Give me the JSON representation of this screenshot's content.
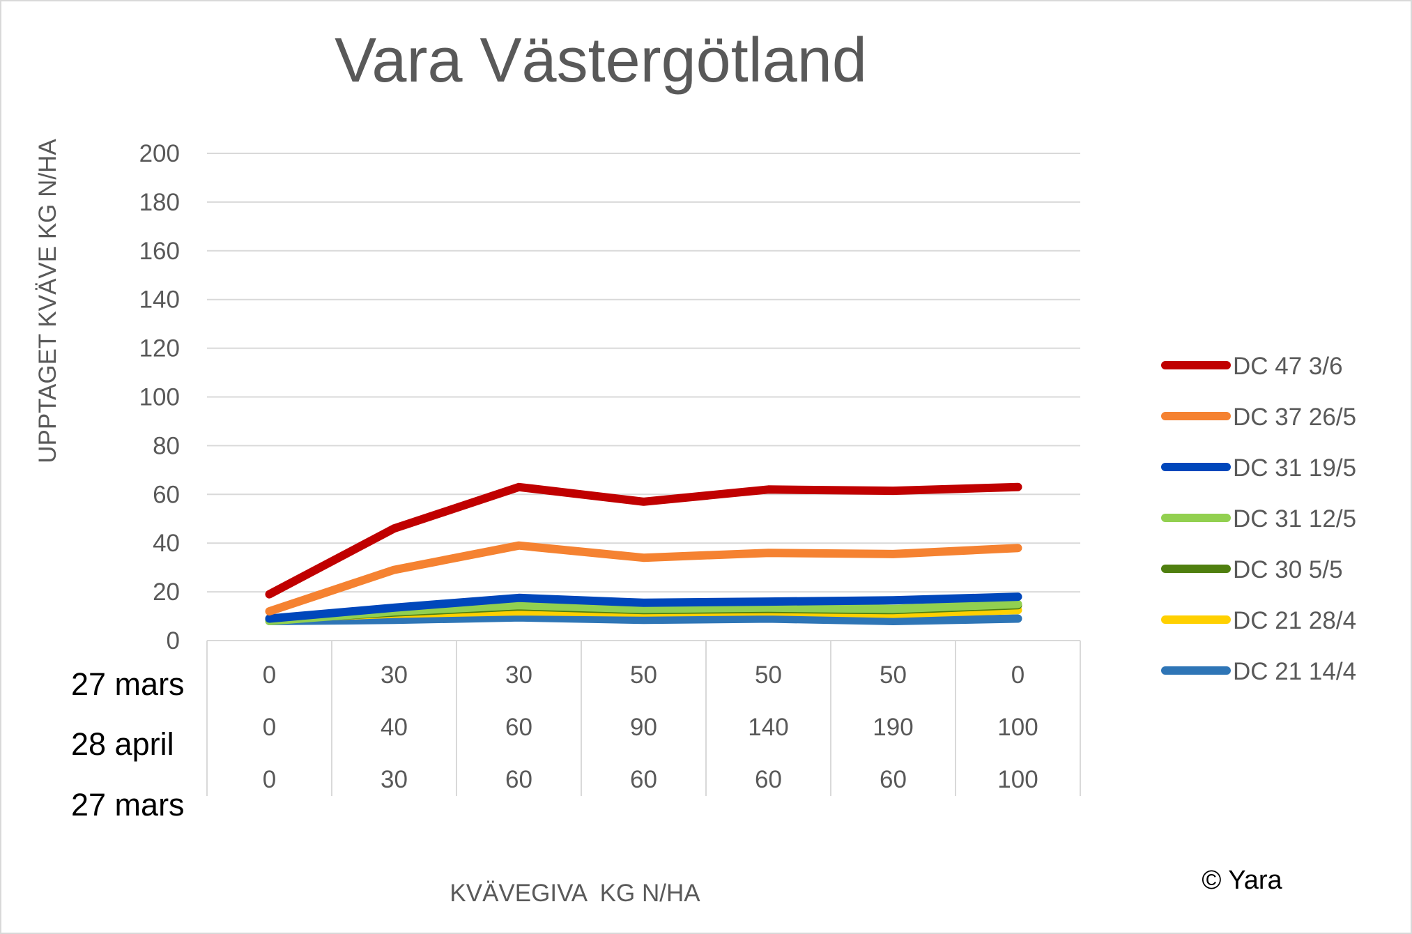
{
  "chart_data": {
    "type": "line",
    "title": "Vara Västergötland",
    "ylabel": "UPPTAGET KVÄVE KG N/HA",
    "xlabel": "KVÄVEGIVA  KG N/HA",
    "ylim": [
      0,
      200
    ],
    "yticks": [
      0,
      20,
      40,
      60,
      80,
      100,
      120,
      140,
      160,
      180,
      200
    ],
    "grid": true,
    "legend_position": "right",
    "category_rows": [
      {
        "label": "27 mars",
        "values": [
          "0",
          "30",
          "30",
          "50",
          "50",
          "50",
          "0"
        ]
      },
      {
        "label": "28 april",
        "values": [
          "0",
          "40",
          "60",
          "90",
          "140",
          "190",
          "100"
        ]
      },
      {
        "label": "27 mars",
        "values": [
          "0",
          "30",
          "60",
          "60",
          "60",
          "60",
          "100"
        ]
      }
    ],
    "series": [
      {
        "name": "DC 47 3/6",
        "color": "#c00000",
        "values": [
          19,
          46,
          63,
          57,
          62,
          61.5,
          63
        ]
      },
      {
        "name": "DC 37 26/5",
        "color": "#f58231",
        "values": [
          12,
          29,
          39,
          34,
          36,
          35.5,
          38
        ]
      },
      {
        "name": "DC 31 19/5",
        "color": "#0047bb",
        "values": [
          9,
          13.5,
          17.5,
          15.5,
          16,
          16.5,
          18
        ]
      },
      {
        "name": "DC 31 12/5",
        "color": "#92d050",
        "values": [
          8,
          12,
          14.5,
          13,
          13.5,
          13,
          15
        ]
      },
      {
        "name": "DC 30 5/5",
        "color": "#4f7f0f",
        "values": [
          8.5,
          11.5,
          14,
          12.5,
          13,
          12.5,
          14.5
        ]
      },
      {
        "name": "DC 21 28/4",
        "color": "#ffd000",
        "values": [
          9,
          11,
          12,
          11.5,
          12,
          11,
          12.5
        ]
      },
      {
        "name": "DC 21 14/4",
        "color": "#2e75b6",
        "values": [
          8,
          8.5,
          9.5,
          8.5,
          9,
          8,
          9
        ]
      }
    ],
    "copyright": "© Yara"
  }
}
